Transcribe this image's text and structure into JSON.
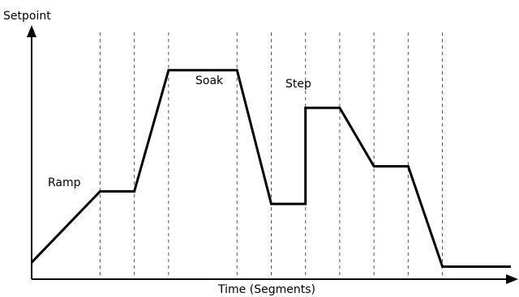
{
  "chart_data": {
    "type": "line",
    "ylabel": "Setpoint",
    "xlabel": "Time (Segments)",
    "annotations": [
      "Ramp",
      "Soak",
      "Step"
    ],
    "segment_boundaries": [
      2,
      3,
      4,
      6,
      7,
      8,
      9,
      10,
      11,
      12
    ],
    "x": [
      0,
      2,
      3,
      4,
      6,
      7,
      8,
      8,
      9,
      10,
      11,
      12,
      12,
      14
    ],
    "y": [
      0.8,
      4.2,
      4.2,
      10,
      10,
      3.6,
      3.6,
      8.2,
      8.2,
      5.4,
      5.4,
      0.6,
      0.6,
      0.6
    ],
    "xlim": [
      0,
      14
    ],
    "ylim": [
      0,
      12
    ],
    "grid": "vertical-dashed",
    "legend": "none"
  }
}
